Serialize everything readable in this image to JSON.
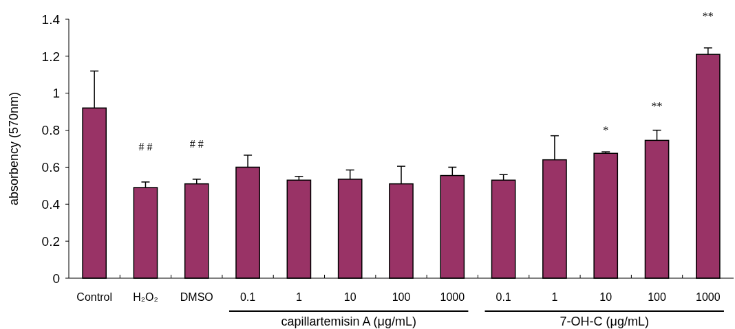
{
  "chart_data": {
    "type": "bar",
    "ylabel": "absorbency (570nm)",
    "categories": [
      "Control",
      "H₂O₂",
      "DMSO",
      "0.1",
      "1",
      "10",
      "100",
      "1000",
      "0.1",
      "1",
      "10",
      "100",
      "1000"
    ],
    "values": [
      0.92,
      0.49,
      0.51,
      0.6,
      0.53,
      0.535,
      0.51,
      0.555,
      0.53,
      0.64,
      0.675,
      0.745,
      1.21
    ],
    "errors": [
      0.2,
      0.03,
      0.025,
      0.065,
      0.02,
      0.05,
      0.095,
      0.045,
      0.03,
      0.13,
      0.008,
      0.055,
      0.035
    ],
    "color": "#993366",
    "ylim": [
      0,
      1.4
    ],
    "yticks": [
      0,
      0.2,
      0.4,
      0.6,
      0.8,
      1,
      1.2,
      1.4
    ],
    "grid": false,
    "annotations": [
      "# #",
      "# #",
      "*",
      "**",
      "**",
      "capillartemisin A (μg/mL)",
      "7-OH-C (μg/mL)"
    ]
  }
}
